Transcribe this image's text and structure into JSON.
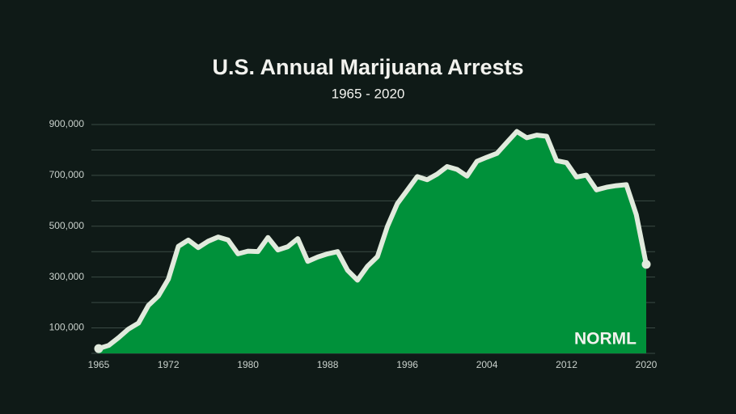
{
  "chart_data": {
    "type": "area",
    "title": "U.S. Annual Marijuana Arrests",
    "subtitle": "1965 - 2020",
    "logo": "NORML",
    "x": [
      1965,
      1966,
      1967,
      1968,
      1969,
      1970,
      1971,
      1972,
      1973,
      1974,
      1975,
      1976,
      1977,
      1978,
      1979,
      1980,
      1981,
      1982,
      1983,
      1984,
      1985,
      1986,
      1987,
      1988,
      1989,
      1990,
      1991,
      1992,
      1993,
      1994,
      1995,
      1996,
      1997,
      1998,
      1999,
      2000,
      2001,
      2002,
      2003,
      2004,
      2005,
      2006,
      2007,
      2008,
      2009,
      2010,
      2011,
      2012,
      2013,
      2014,
      2015,
      2016,
      2017,
      2018,
      2019,
      2020
    ],
    "values": [
      18815,
      31119,
      61843,
      95870,
      118903,
      188682,
      225828,
      292179,
      420700,
      445600,
      416100,
      441100,
      457600,
      445800,
      391600,
      401982,
      400300,
      455600,
      406900,
      419400,
      451138,
      361800,
      378709,
      391600,
      399986,
      326850,
      287850,
      342314,
      380689,
      499122,
      588964,
      641642,
      695201,
      682885,
      704812,
      734497,
      723627,
      697082,
      755186,
      771605,
      786545,
      829625,
      872720,
      847864,
      858408,
      853838,
      757969,
      749825,
      693482,
      700993,
      643121,
      653249,
      659700,
      663367,
      545602,
      350150
    ],
    "color": "#00913a",
    "line_color": "#e1eadd",
    "xlim": [
      1965,
      2020
    ],
    "xticks": [
      1965,
      1972,
      1980,
      1988,
      1996,
      2004,
      2012,
      2020
    ],
    "ylim": [
      0,
      900000
    ],
    "yticks": [
      {
        "value": 100000,
        "label": "100,000"
      },
      {
        "value": 300000,
        "label": "300,000"
      },
      {
        "value": 500000,
        "label": "500,000"
      },
      {
        "value": 700000,
        "label": "700,000"
      },
      {
        "value": 900000,
        "label": "900,000"
      }
    ],
    "minor_yticks": [
      0,
      200000,
      400000,
      600000,
      800000
    ],
    "grid": true
  }
}
